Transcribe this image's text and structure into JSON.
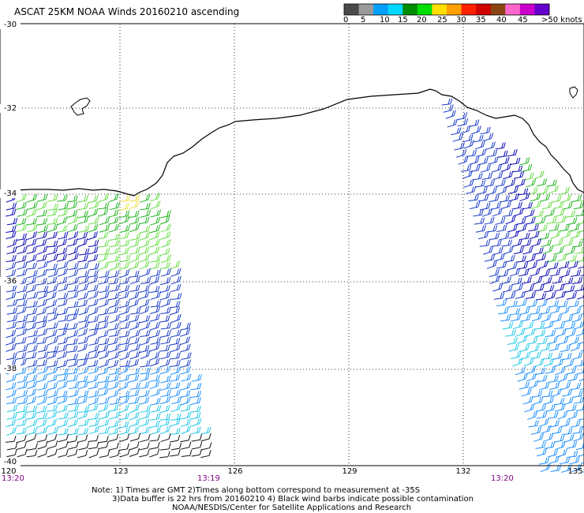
{
  "title": "ASCAT 25KM NOAA Winds 20160210 ascending",
  "legend": {
    "unit": "knots",
    "segments": [
      "#4a4a4a",
      "#9a9a9a",
      "#00a0ff",
      "#00d8ff",
      "#008c00",
      "#00e000",
      "#ffe000",
      "#ffa000",
      "#ff2000",
      "#d00000",
      "#8b4513",
      "#ff66cc",
      "#cc00cc",
      "#6600cc"
    ],
    "ticks": [
      "0",
      "5",
      "10",
      "15",
      "20",
      "25",
      "30",
      "35",
      "40",
      "45",
      ">50 knots"
    ]
  },
  "lat_labels": [
    "-30",
    "-32",
    "-34",
    "-36",
    "-38",
    "-40"
  ],
  "lon_labels": [
    "120",
    "123",
    "126",
    "129",
    "132",
    "135"
  ],
  "times": [
    "13:20",
    "13:19",
    "13:20"
  ],
  "notes": [
    "Note: 1) Times are GMT 2)Times along bottom correspond to measurement at -35S",
    "3)Data buffer is 22 hrs from 20160210 4) Black wind barbs indicate possible contamination",
    "NOAA/NESDIS/Center for Satellite Applications and Research"
  ],
  "colors": {
    "coast": "#000000",
    "grid": "#000000",
    "wind_black": "#111111",
    "wind_cyan": "#20c8e8",
    "wind_lightblue": "#1e90ff",
    "wind_blue": "#1a3cc8",
    "wind_darkblue": "#0a0ab4",
    "wind_green": "#22b422",
    "wind_lightgreen": "#66dd44",
    "wind_yellow": "#e8e040"
  }
}
